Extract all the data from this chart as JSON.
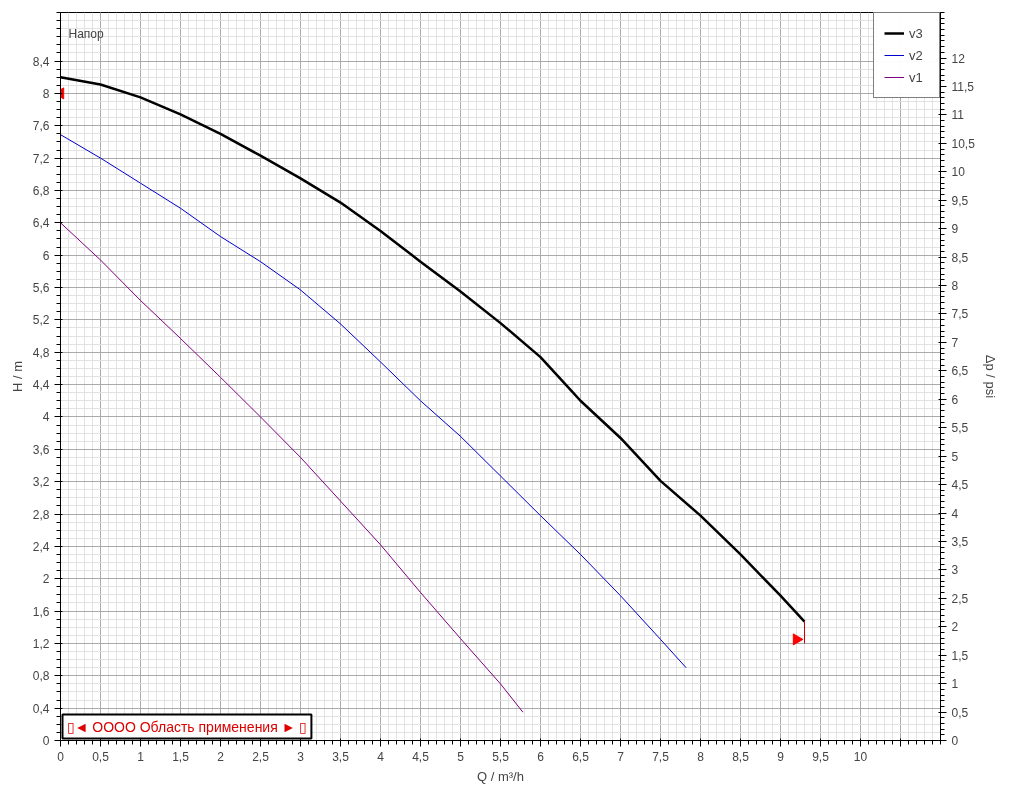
{
  "chart_data": {
    "type": "line",
    "title": "Напор",
    "xlabel": "Q / m³/h",
    "ylabel": "H / m",
    "y2label": "Δp / psi",
    "xlim": [
      0,
      11
    ],
    "ylim": [
      0,
      9
    ],
    "y2lim": [
      0,
      12.8
    ],
    "xticks": [
      0,
      {
        "value": 0.5,
        "label": "0,5"
      },
      1,
      {
        "value": 1.5,
        "label": "1,5"
      },
      2,
      {
        "value": 2.5,
        "label": "2,5"
      },
      3,
      {
        "value": 3.5,
        "label": "3,5"
      },
      4,
      {
        "value": 4.5,
        "label": "4,5"
      },
      5,
      {
        "value": 5.5,
        "label": "5,5"
      },
      6,
      {
        "value": 6.5,
        "label": "6,5"
      },
      7,
      {
        "value": 7.5,
        "label": "7,5"
      },
      8,
      {
        "value": 8.5,
        "label": "8,5"
      },
      9,
      {
        "value": 9.5,
        "label": "9,5"
      },
      10,
      {
        "value": 10.5,
        "label": null
      }
    ],
    "yticks": [
      0,
      {
        "value": 0.4,
        "label": "0,4"
      },
      {
        "value": 0.8,
        "label": "0,8"
      },
      {
        "value": 1.2,
        "label": "1,2"
      },
      {
        "value": 1.6,
        "label": "1,6"
      },
      2,
      {
        "value": 2.4,
        "label": "2,4"
      },
      {
        "value": 2.8,
        "label": "2,8"
      },
      {
        "value": 3.2,
        "label": "3,2"
      },
      {
        "value": 3.6,
        "label": "3,6"
      },
      4,
      {
        "value": 4.4,
        "label": "4,4"
      },
      {
        "value": 4.8,
        "label": "4,8"
      },
      {
        "value": 5.2,
        "label": "5,2"
      },
      {
        "value": 5.6,
        "label": "5,6"
      },
      6,
      {
        "value": 6.4,
        "label": "6,4"
      },
      {
        "value": 6.8,
        "label": "6,8"
      },
      {
        "value": 7.2,
        "label": "7,2"
      },
      {
        "value": 7.6,
        "label": "7,6"
      },
      8,
      {
        "value": 8.4,
        "label": "8,4"
      }
    ],
    "y2ticks": [
      0,
      {
        "value": 0.5,
        "label": "0,5"
      },
      1,
      {
        "value": 1.5,
        "label": "1,5"
      },
      2,
      {
        "value": 2.5,
        "label": "2,5"
      },
      3,
      {
        "value": 3.5,
        "label": "3,5"
      },
      4,
      {
        "value": 4.5,
        "label": "4,5"
      },
      5,
      {
        "value": 5.5,
        "label": "5,5"
      },
      6,
      {
        "value": 6.5,
        "label": "6,5"
      },
      7,
      {
        "value": 7.5,
        "label": "7,5"
      },
      8,
      {
        "value": 8.5,
        "label": "8,5"
      },
      9,
      {
        "value": 9.5,
        "label": "9,5"
      },
      10,
      {
        "value": 10.5,
        "label": "10,5"
      },
      11,
      {
        "value": 11.5,
        "label": "11,5"
      },
      12
    ],
    "grid": true,
    "legend": "top right",
    "annotations": [
      "▯◄ OOOO Область применения ► ▯"
    ],
    "series": [
      {
        "name": "v3",
        "color": "#000000",
        "x": [
          0,
          0.5,
          1,
          1.5,
          2,
          2.5,
          3,
          3.5,
          4,
          4.5,
          5,
          5.5,
          6,
          6.39,
          6.5,
          7,
          7.5,
          8,
          8.5,
          9,
          9.3
        ],
        "values": [
          8.2,
          8.11,
          7.95,
          7.74,
          7.5,
          7.23,
          6.95,
          6.65,
          6.3,
          5.92,
          5.55,
          5.16,
          4.74,
          4.32,
          4.2,
          3.74,
          3.21,
          2.78,
          2.3,
          1.79,
          1.47
        ]
      },
      {
        "name": "v2",
        "color": "#0000cc",
        "x": [
          0,
          0.5,
          1,
          1.5,
          2,
          2.5,
          3,
          3.5,
          4,
          4.5,
          5,
          5.5,
          6,
          6.5,
          7,
          7.5,
          7.82
        ],
        "values": [
          7.49,
          7.2,
          6.89,
          6.58,
          6.23,
          5.92,
          5.57,
          5.15,
          4.68,
          4.2,
          3.76,
          3.27,
          2.78,
          2.3,
          1.79,
          1.25,
          0.9
        ]
      },
      {
        "name": "v1",
        "color": "#800080",
        "x": [
          0,
          0.5,
          1,
          1.5,
          2,
          2.5,
          3,
          3.5,
          4,
          4.5,
          5,
          5.5,
          5.78
        ],
        "values": [
          6.4,
          5.94,
          5.44,
          4.97,
          4.49,
          4.0,
          3.5,
          2.96,
          2.42,
          1.83,
          1.26,
          0.7,
          0.35
        ]
      },
      {
        "type": "scatter",
        "marker": "triangle",
        "color": "#ff0000",
        "x": [
          0,
          9.2
        ],
        "values": [
          8.0,
          1.25
        ]
      },
      {
        "color": "#cc0000",
        "x": [
          9.3,
          9.3
        ],
        "values": [
          1.2,
          1.47
        ]
      }
    ]
  }
}
